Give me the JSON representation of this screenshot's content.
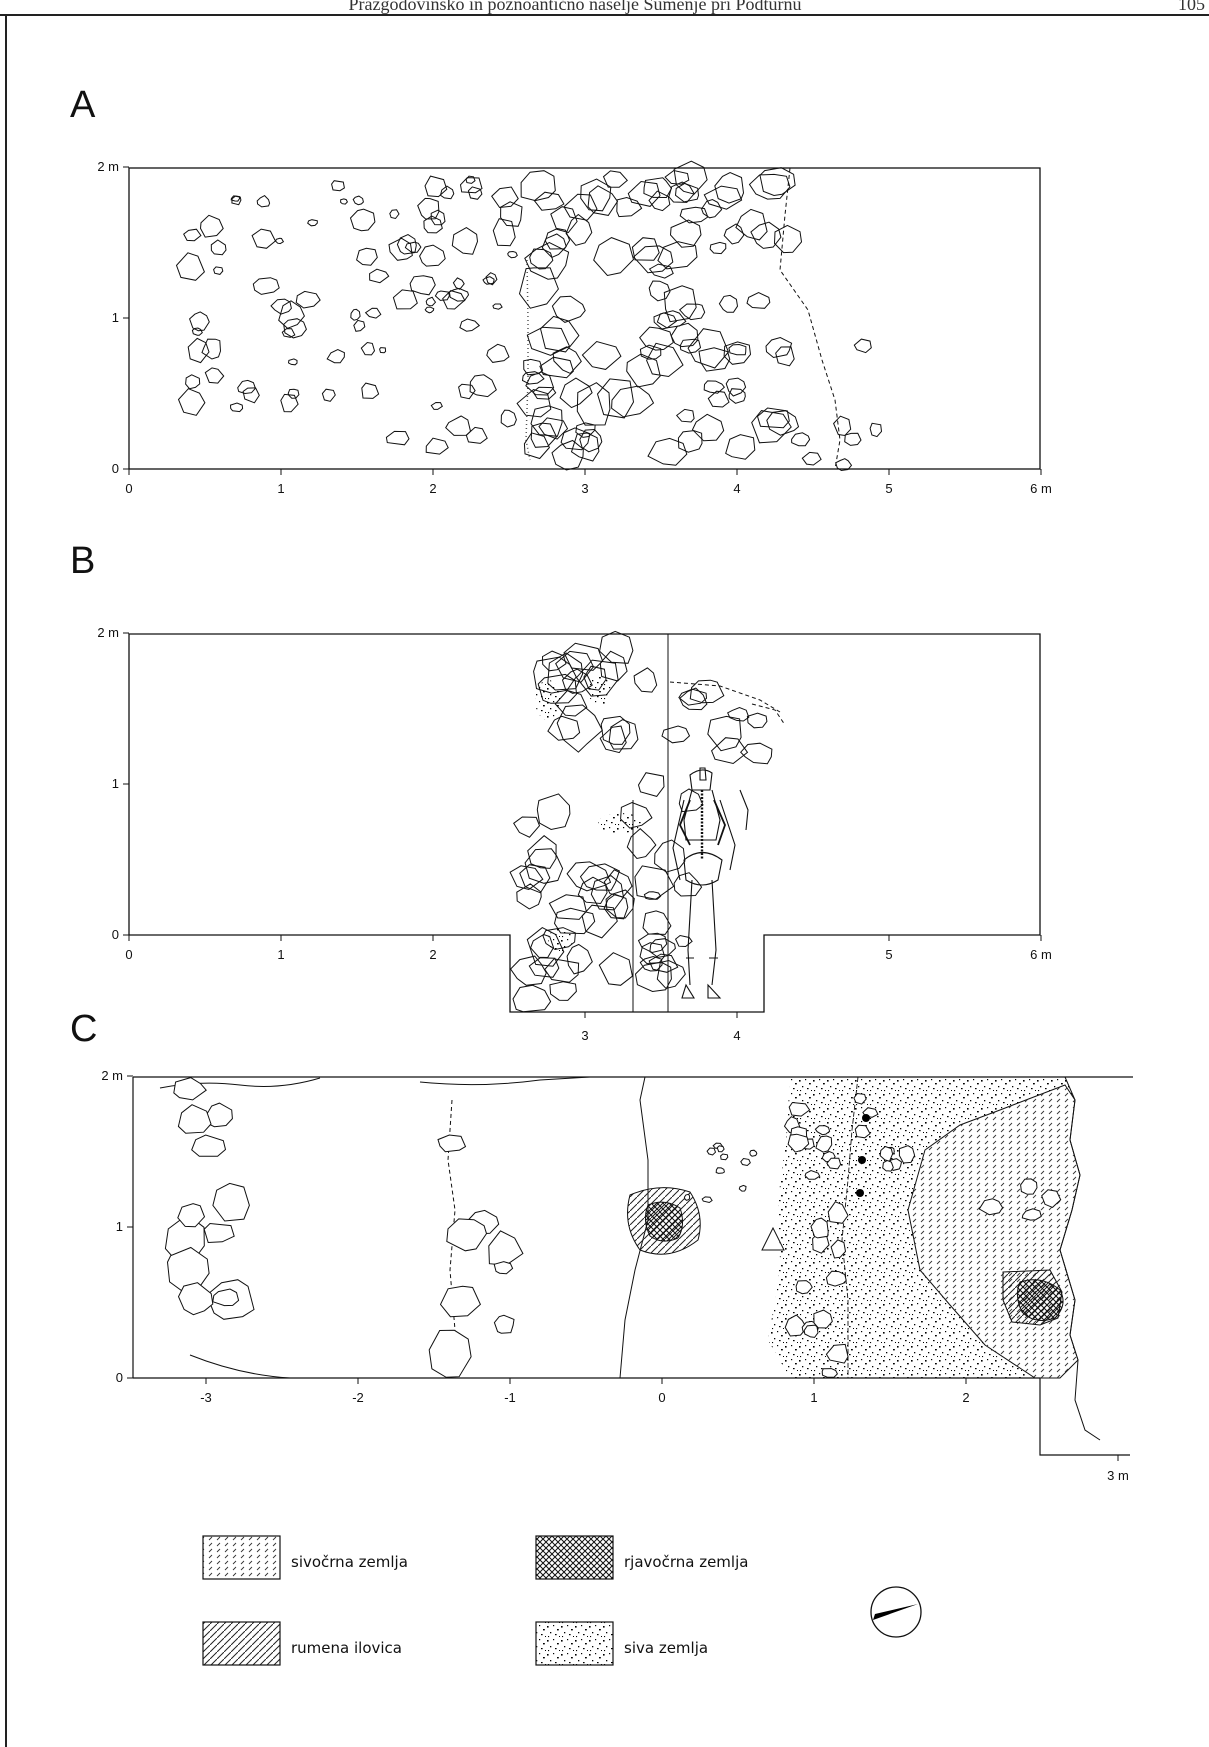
{
  "header": {
    "running_head": "Prazgodovinsko in poznoantično naselje Sumenje pri Podturnu",
    "page_number": "105"
  },
  "panels": [
    {
      "letter": "A",
      "x_ticks": [
        "0",
        "1",
        "2",
        "3",
        "4",
        "5",
        "6 m"
      ],
      "y_ticks": [
        "0",
        "1",
        "2 m"
      ]
    },
    {
      "letter": "B",
      "x_ticks": [
        "0",
        "1",
        "2",
        "3",
        "4",
        "5",
        "6 m"
      ],
      "y_ticks": [
        "0",
        "1",
        "2 m"
      ]
    },
    {
      "letter": "C",
      "x_ticks": [
        "-3",
        "-2",
        "-1",
        "0",
        "1",
        "2",
        "3 m"
      ],
      "y_ticks": [
        "0",
        "1",
        "2 m"
      ]
    }
  ],
  "legend": [
    {
      "key": "sivocrna",
      "label": "sivočrna zemlja",
      "pattern": "dashes"
    },
    {
      "key": "rjavocrna",
      "label": "rjavočrna zemlja",
      "pattern": "crosshatch"
    },
    {
      "key": "rumena",
      "label": "rumena ilovica",
      "pattern": "diagonal"
    },
    {
      "key": "siva",
      "label": "siva zemlja",
      "pattern": "speckle"
    }
  ],
  "north_arrow": "north-arrow-icon"
}
